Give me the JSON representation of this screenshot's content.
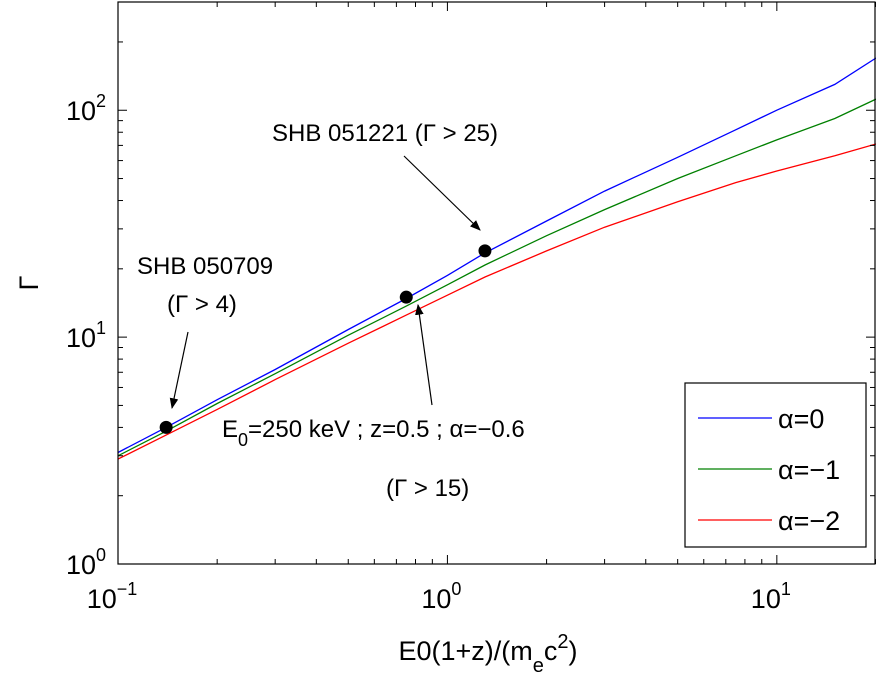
{
  "chart_data": {
    "type": "line",
    "xscale": "log",
    "yscale": "log",
    "xlim": [
      0.1,
      20
    ],
    "ylim": [
      1,
      300
    ],
    "grid": false,
    "legend_position": "bottom-right",
    "xlabel": "E0(1+z)/(m",
    "xlabel_sub": "e",
    "xlabel_c": "c",
    "xlabel_sup": "2",
    "xlabel_end": ")",
    "ylabel": "Γ",
    "x_ticks": [
      {
        "value": 0.1,
        "base": "10",
        "exp": "−1"
      },
      {
        "value": 1,
        "base": "10",
        "exp": "0"
      },
      {
        "value": 10,
        "base": "10",
        "exp": "1"
      }
    ],
    "y_ticks": [
      {
        "value": 1,
        "base": "10",
        "exp": "0"
      },
      {
        "value": 10,
        "base": "10",
        "exp": "1"
      },
      {
        "value": 100,
        "base": "10",
        "exp": "2"
      }
    ],
    "series": [
      {
        "name": "α=0",
        "color": "#0000ff",
        "x": [
          0.1,
          0.14,
          0.2,
          0.3,
          0.5,
          0.75,
          1.0,
          1.3,
          2.0,
          3.0,
          5.0,
          7.5,
          10.0,
          15.0,
          20.0
        ],
        "y": [
          3.1,
          4.0,
          5.3,
          7.2,
          10.8,
          14.8,
          18.7,
          23.5,
          32.5,
          44.0,
          62.0,
          82.0,
          100.0,
          130.0,
          170.0
        ]
      },
      {
        "name": "α=−1",
        "color": "#008000",
        "x": [
          0.1,
          0.14,
          0.2,
          0.3,
          0.5,
          0.75,
          1.0,
          1.3,
          2.0,
          3.0,
          5.0,
          7.5,
          10.0,
          15.0,
          20.0
        ],
        "y": [
          3.0,
          3.85,
          5.1,
          6.9,
          10.2,
          13.7,
          17.0,
          20.8,
          28.0,
          36.5,
          50.0,
          63.0,
          74.0,
          92.0,
          112.0
        ]
      },
      {
        "name": "α=−2",
        "color": "#ff0000",
        "x": [
          0.1,
          0.14,
          0.2,
          0.3,
          0.5,
          0.75,
          1.0,
          1.3,
          2.0,
          3.0,
          5.0,
          7.5,
          10.0,
          15.0,
          20.0
        ],
        "y": [
          2.9,
          3.7,
          4.8,
          6.5,
          9.4,
          12.5,
          15.3,
          18.4,
          24.0,
          30.5,
          39.5,
          48.0,
          54.0,
          63.0,
          71.0
        ]
      }
    ],
    "points": [
      {
        "x": 0.14,
        "y": 4.0
      },
      {
        "x": 0.75,
        "y": 15.0
      },
      {
        "x": 1.3,
        "y": 24.0
      }
    ],
    "annotations": [
      {
        "text": "SHB 051221 (Γ > 25)"
      },
      {
        "text": "SHB 050709"
      },
      {
        "text": "(Γ > 4)"
      },
      {
        "text_pre": "E",
        "text_sub": "0",
        "text_post": "=250 keV ; z=0.5 ; α=−0.6"
      },
      {
        "text": "(Γ > 15)"
      }
    ]
  }
}
